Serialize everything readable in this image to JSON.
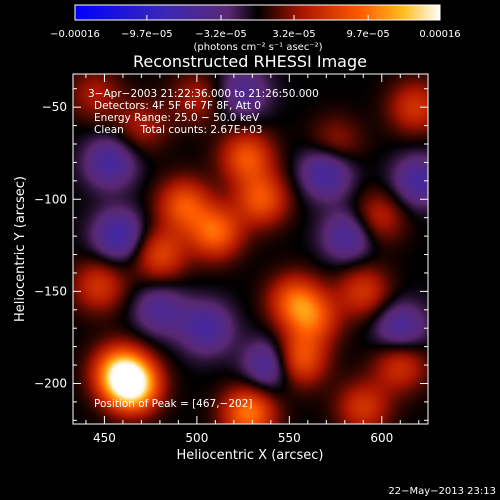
{
  "chart_data": {
    "type": "heatmap",
    "title": "Reconstructed RHESSI Image",
    "xlabel": "Heliocentric X (arcsec)",
    "ylabel": "Heliocentric Y (arcsec)",
    "xlim": [
      433,
      625
    ],
    "ylim": [
      -222,
      -32
    ],
    "x_ticks": [
      {
        "value": 450,
        "label": "450"
      },
      {
        "value": 500,
        "label": "500"
      },
      {
        "value": 550,
        "label": "550"
      },
      {
        "value": 600,
        "label": "600"
      }
    ],
    "y_ticks": [
      {
        "value": -50,
        "label": "−50"
      },
      {
        "value": -100,
        "label": "−100"
      },
      {
        "value": -150,
        "label": "−150"
      },
      {
        "value": -200,
        "label": "−200"
      }
    ],
    "colorbar": {
      "min": -0.00016,
      "max": 0.00016,
      "ticks": [
        {
          "value": -0.00016,
          "label": "−0.00016"
        },
        {
          "value": -9.7e-05,
          "label": "−9.7e−05"
        },
        {
          "value": -3.2e-05,
          "label": "−3.2e−05"
        },
        {
          "value": 3.2e-05,
          "label": "3.2e−05"
        },
        {
          "value": 9.7e-05,
          "label": "9.7e−05"
        },
        {
          "value": 0.00016,
          "label": "0.00016"
        }
      ],
      "unit_label": "(photons cm⁻² s⁻¹ asec⁻²)"
    },
    "info_lines": [
      "3−Apr−2003 21:22:36.000 to 21:26:50.000",
      "Detectors: 4F 5F 6F 7F 8F, Att 0",
      "Energy Range: 25.0 − 50.0 keV",
      "Clean     Total counts: 2.67E+03"
    ],
    "peak_label": "Position of Peak = [467,−202]",
    "peak": {
      "x": 467,
      "y": -202
    },
    "sources": [
      {
        "x": 465,
        "y": -201,
        "value": 0.00016
      },
      {
        "x": 458,
        "y": -193,
        "value": 0.0001
      },
      {
        "x": 510,
        "y": -118,
        "value": 9e-05
      },
      {
        "x": 493,
        "y": -103,
        "value": 8e-05
      },
      {
        "x": 535,
        "y": -100,
        "value": 8e-05
      },
      {
        "x": 527,
        "y": -77,
        "value": 8e-05
      },
      {
        "x": 480,
        "y": -130,
        "value": 7e-05
      },
      {
        "x": 447,
        "y": -147,
        "value": 6e-05
      },
      {
        "x": 553,
        "y": -155,
        "value": 8e-05
      },
      {
        "x": 563,
        "y": -165,
        "value": 7e-05
      },
      {
        "x": 555,
        "y": -187,
        "value": 9e-05
      },
      {
        "x": 590,
        "y": -150,
        "value": 6e-05
      },
      {
        "x": 610,
        "y": -190,
        "value": 6e-05
      },
      {
        "x": 598,
        "y": -110,
        "value": 5e-05
      },
      {
        "x": 618,
        "y": -50,
        "value": 6e-05
      },
      {
        "x": 528,
        "y": -216,
        "value": 0.0001
      },
      {
        "x": 590,
        "y": -213,
        "value": 6e-05
      },
      {
        "x": 470,
        "y": -60,
        "value": 4e-05
      },
      {
        "x": 445,
        "y": -43,
        "value": 4e-05
      },
      {
        "x": 500,
        "y": -45,
        "value": 4e-05
      },
      {
        "x": 575,
        "y": -70,
        "value": 4e-05
      },
      {
        "x": 453,
        "y": -80,
        "value": -6e-05
      },
      {
        "x": 458,
        "y": -120,
        "value": -7e-05
      },
      {
        "x": 570,
        "y": -85,
        "value": -7e-05
      },
      {
        "x": 582,
        "y": -120,
        "value": -6e-05
      },
      {
        "x": 620,
        "y": -90,
        "value": -6e-05
      },
      {
        "x": 540,
        "y": -190,
        "value": -7e-05
      },
      {
        "x": 505,
        "y": -170,
        "value": -6e-05
      },
      {
        "x": 610,
        "y": -170,
        "value": -6e-05
      },
      {
        "x": 480,
        "y": -160,
        "value": -5e-05
      },
      {
        "x": 525,
        "y": -42,
        "value": -5e-05
      }
    ]
  },
  "footer": {
    "timestamp": "22−May−2013 23:13"
  }
}
